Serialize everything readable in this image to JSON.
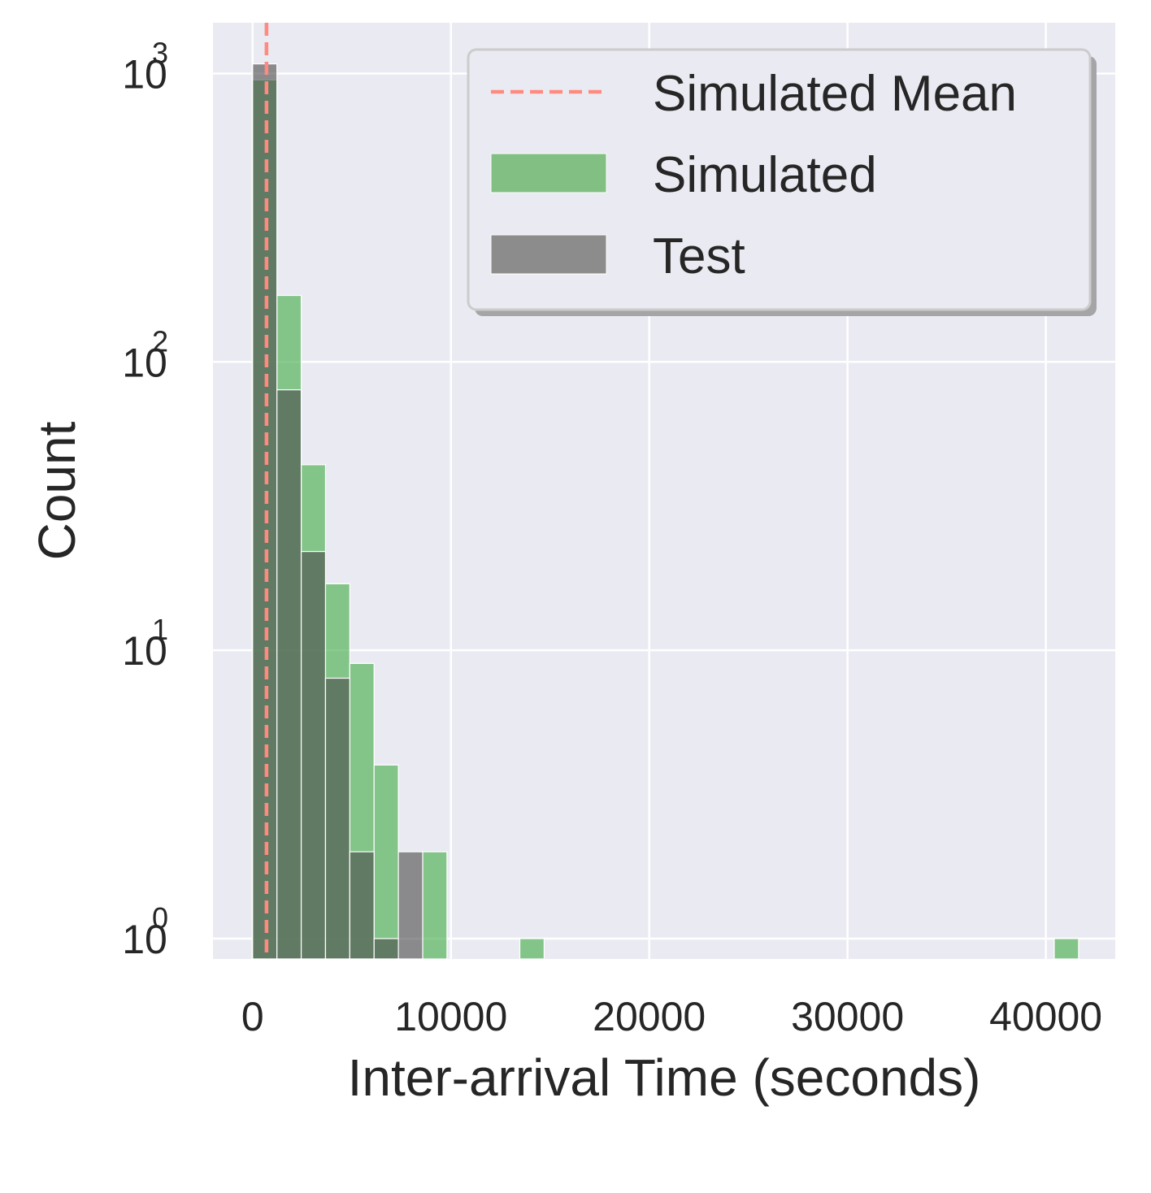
{
  "chart_data": {
    "type": "bar",
    "subtype": "overlaid-histogram",
    "xlabel": "Inter-arrival Time (seconds)",
    "ylabel": "Count",
    "xlim": [
      -2000,
      43500
    ],
    "ylim": [
      0.85,
      1500
    ],
    "y_scale": "log",
    "grid": true,
    "legend_position": "top-right",
    "x_ticks": [
      {
        "value": 0,
        "label": "0"
      },
      {
        "value": 10000,
        "label": "10000"
      },
      {
        "value": 20000,
        "label": "20000"
      },
      {
        "value": 30000,
        "label": "30000"
      },
      {
        "value": 40000,
        "label": "40000"
      }
    ],
    "y_ticks": [
      {
        "value": 1,
        "base": "10",
        "exp": "0"
      },
      {
        "value": 10,
        "base": "10",
        "exp": "1"
      },
      {
        "value": 100,
        "base": "10",
        "exp": "2"
      },
      {
        "value": 1000,
        "base": "10",
        "exp": "3"
      }
    ],
    "bin_width": 1225,
    "bin_start": 0,
    "series": [
      {
        "name": "Simulated",
        "color": "#4caf50",
        "alpha": 0.65,
        "bins": [
          {
            "x0": 0,
            "count": 950
          },
          {
            "x0": 1225,
            "count": 170
          },
          {
            "x0": 2450,
            "count": 44
          },
          {
            "x0": 3675,
            "count": 17
          },
          {
            "x0": 4900,
            "count": 9
          },
          {
            "x0": 6125,
            "count": 4
          },
          {
            "x0": 8575,
            "count": 2
          },
          {
            "x0": 13475,
            "count": 1
          },
          {
            "x0": 40425,
            "count": 1
          }
        ]
      },
      {
        "name": "Test",
        "color": "#4a4a4a",
        "alpha": 0.6,
        "bins": [
          {
            "x0": 0,
            "count": 1080
          },
          {
            "x0": 1225,
            "count": 80
          },
          {
            "x0": 2450,
            "count": 22
          },
          {
            "x0": 3675,
            "count": 8
          },
          {
            "x0": 4900,
            "count": 2
          },
          {
            "x0": 6125,
            "count": 1
          },
          {
            "x0": 7350,
            "count": 2
          }
        ]
      }
    ],
    "mean_line": {
      "name": "Simulated Mean",
      "x": 700,
      "color": "#ff8a80"
    },
    "legend": [
      {
        "label": "Simulated Mean",
        "kind": "line",
        "color": "#ff8a80"
      },
      {
        "label": "Simulated",
        "kind": "patch",
        "color": "#82bf82"
      },
      {
        "label": "Test",
        "kind": "patch",
        "color": "#8c8c8d"
      }
    ]
  }
}
